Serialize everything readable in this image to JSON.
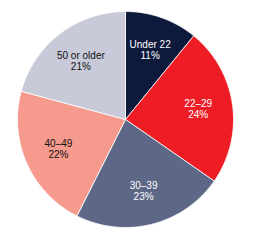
{
  "chart_data": {
    "type": "pie",
    "categories": [
      "Under 22",
      "22–29",
      "30–39",
      "40–49",
      "50 or older"
    ],
    "values": [
      11,
      24,
      23,
      22,
      21
    ],
    "value_labels": [
      "11%",
      "24%",
      "23%",
      "22%",
      "21%"
    ],
    "colors": [
      "#0e1a3c",
      "#ee1c25",
      "#5d6786",
      "#f59a8c",
      "#c9cad9"
    ],
    "data_labels": true
  }
}
